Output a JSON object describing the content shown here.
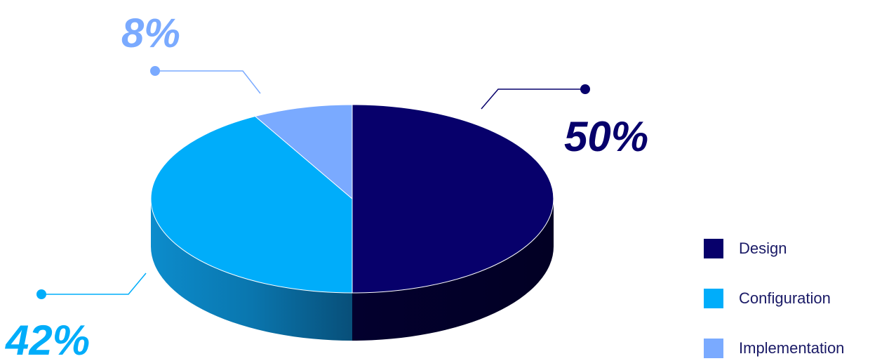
{
  "chart_data": {
    "type": "pie",
    "categories": [
      "Design",
      "Configuration",
      "Implementation"
    ],
    "values": [
      50,
      42,
      8
    ],
    "labels": [
      "50%",
      "42%",
      "8%"
    ],
    "colors": [
      "#07006b",
      "#00adfa",
      "#7aaaff"
    ],
    "legend": {
      "position": "right",
      "items": [
        {
          "label": "Design",
          "color": "#07006b"
        },
        {
          "label": "Configuration",
          "color": "#00adfa"
        },
        {
          "label": "Implementation",
          "color": "#7aaaff"
        }
      ]
    }
  }
}
